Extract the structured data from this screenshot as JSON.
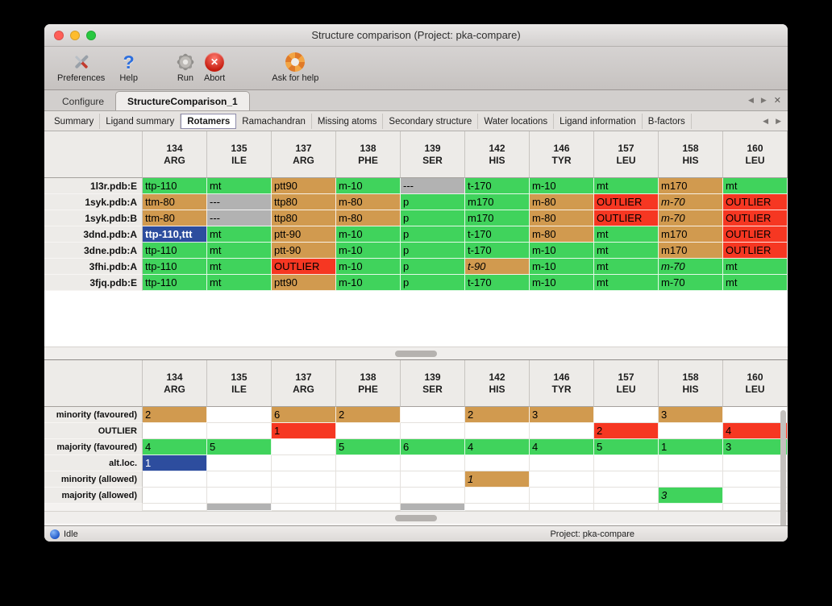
{
  "window": {
    "title": "Structure comparison (Project: pka-compare)"
  },
  "toolbar": {
    "items": [
      {
        "label": "Preferences"
      },
      {
        "label": "Help"
      },
      {
        "label": "Run"
      },
      {
        "label": "Abort"
      },
      {
        "label": "Ask for help"
      }
    ]
  },
  "icons": {
    "left_arrow": "◀",
    "right_arrow": "▶",
    "close": "✕",
    "question_mark": "?",
    "cross": "✕"
  },
  "tabs": [
    {
      "label": "Configure",
      "active": false
    },
    {
      "label": "StructureComparison_1",
      "active": true
    }
  ],
  "subtabs": {
    "active_index": 2,
    "items": [
      "Summary",
      "Ligand summary",
      "Rotamers",
      "Ramachandran",
      "Missing atoms",
      "Secondary structure",
      "Water locations",
      "Ligand information",
      "B-factors"
    ]
  },
  "columns": [
    {
      "num": "134",
      "res": "ARG"
    },
    {
      "num": "135",
      "res": "ILE"
    },
    {
      "num": "137",
      "res": "ARG"
    },
    {
      "num": "138",
      "res": "PHE"
    },
    {
      "num": "139",
      "res": "SER"
    },
    {
      "num": "142",
      "res": "HIS"
    },
    {
      "num": "146",
      "res": "TYR"
    },
    {
      "num": "157",
      "res": "LEU"
    },
    {
      "num": "158",
      "res": "HIS"
    },
    {
      "num": "160",
      "res": "LEU"
    }
  ],
  "colors": {
    "green": "#40d35c",
    "orange": "#d19a4f",
    "red": "#f63722",
    "gray": "#b2b2b2",
    "blue": "#2d4d9e"
  },
  "rotamer_table": {
    "rows": [
      {
        "label": "1l3r.pdb:E",
        "cells": [
          {
            "t": "ttp-110",
            "c": "green"
          },
          {
            "t": "mt",
            "c": "green"
          },
          {
            "t": "ptt90",
            "c": "orange"
          },
          {
            "t": "m-10",
            "c": "green"
          },
          {
            "t": "---",
            "c": "gray"
          },
          {
            "t": "t-170",
            "c": "green"
          },
          {
            "t": "m-10",
            "c": "green"
          },
          {
            "t": "mt",
            "c": "green"
          },
          {
            "t": "m170",
            "c": "orange"
          },
          {
            "t": "mt",
            "c": "green"
          }
        ]
      },
      {
        "label": "1syk.pdb:A",
        "cells": [
          {
            "t": "ttm-80",
            "c": "orange"
          },
          {
            "t": "---",
            "c": "gray"
          },
          {
            "t": "ttp80",
            "c": "orange"
          },
          {
            "t": "m-80",
            "c": "orange"
          },
          {
            "t": "p",
            "c": "green"
          },
          {
            "t": "m170",
            "c": "green"
          },
          {
            "t": "m-80",
            "c": "orange"
          },
          {
            "t": "OUTLIER",
            "c": "red"
          },
          {
            "t": "m-70",
            "c": "orange",
            "i": true
          },
          {
            "t": "OUTLIER",
            "c": "red"
          }
        ]
      },
      {
        "label": "1syk.pdb:B",
        "cells": [
          {
            "t": "ttm-80",
            "c": "orange"
          },
          {
            "t": "---",
            "c": "gray"
          },
          {
            "t": "ttp80",
            "c": "orange"
          },
          {
            "t": "m-80",
            "c": "orange"
          },
          {
            "t": "p",
            "c": "green"
          },
          {
            "t": "m170",
            "c": "green"
          },
          {
            "t": "m-80",
            "c": "orange"
          },
          {
            "t": "OUTLIER",
            "c": "red"
          },
          {
            "t": "m-70",
            "c": "orange",
            "i": true
          },
          {
            "t": "OUTLIER",
            "c": "red"
          }
        ]
      },
      {
        "label": "3dnd.pdb:A",
        "cells": [
          {
            "t": "ttp-110,ttt",
            "c": "blue",
            "b": true
          },
          {
            "t": "mt",
            "c": "green"
          },
          {
            "t": "ptt-90",
            "c": "orange"
          },
          {
            "t": "m-10",
            "c": "green"
          },
          {
            "t": "p",
            "c": "green"
          },
          {
            "t": "t-170",
            "c": "green"
          },
          {
            "t": "m-80",
            "c": "orange"
          },
          {
            "t": "mt",
            "c": "green"
          },
          {
            "t": "m170",
            "c": "orange"
          },
          {
            "t": "OUTLIER",
            "c": "red"
          }
        ]
      },
      {
        "label": "3dne.pdb:A",
        "cells": [
          {
            "t": "ttp-110",
            "c": "green"
          },
          {
            "t": "mt",
            "c": "green"
          },
          {
            "t": "ptt-90",
            "c": "orange"
          },
          {
            "t": "m-10",
            "c": "green"
          },
          {
            "t": "p",
            "c": "green"
          },
          {
            "t": "t-170",
            "c": "green"
          },
          {
            "t": "m-10",
            "c": "green"
          },
          {
            "t": "mt",
            "c": "green"
          },
          {
            "t": "m170",
            "c": "orange"
          },
          {
            "t": "OUTLIER",
            "c": "red"
          }
        ]
      },
      {
        "label": "3fhi.pdb:A",
        "cells": [
          {
            "t": "ttp-110",
            "c": "green"
          },
          {
            "t": "mt",
            "c": "green"
          },
          {
            "t": "OUTLIER",
            "c": "red"
          },
          {
            "t": "m-10",
            "c": "green"
          },
          {
            "t": "p",
            "c": "green"
          },
          {
            "t": "t-90",
            "c": "orange",
            "i": true
          },
          {
            "t": "m-10",
            "c": "green"
          },
          {
            "t": "mt",
            "c": "green"
          },
          {
            "t": "m-70",
            "c": "green",
            "i": true
          },
          {
            "t": "mt",
            "c": "green"
          }
        ]
      },
      {
        "label": "3fjq.pdb:E",
        "cells": [
          {
            "t": "ttp-110",
            "c": "green"
          },
          {
            "t": "mt",
            "c": "green"
          },
          {
            "t": "ptt90",
            "c": "orange"
          },
          {
            "t": "m-10",
            "c": "green"
          },
          {
            "t": "p",
            "c": "green"
          },
          {
            "t": "t-170",
            "c": "green"
          },
          {
            "t": "m-10",
            "c": "green"
          },
          {
            "t": "mt",
            "c": "green"
          },
          {
            "t": "m-70",
            "c": "green"
          },
          {
            "t": "mt",
            "c": "green"
          }
        ]
      }
    ]
  },
  "summary_table": {
    "rows": [
      {
        "label": "minority (favoured)",
        "cells": [
          {
            "t": "2",
            "c": "orange"
          },
          {},
          {
            "t": "6",
            "c": "orange"
          },
          {
            "t": "2",
            "c": "orange"
          },
          {},
          {
            "t": "2",
            "c": "orange"
          },
          {
            "t": "3",
            "c": "orange"
          },
          {},
          {
            "t": "3",
            "c": "orange"
          },
          {}
        ]
      },
      {
        "label": "OUTLIER",
        "cells": [
          {},
          {},
          {
            "t": "1",
            "c": "red"
          },
          {},
          {},
          {},
          {},
          {
            "t": "2",
            "c": "red"
          },
          {},
          {
            "t": "4",
            "c": "red"
          }
        ]
      },
      {
        "label": "majority (favoured)",
        "cells": [
          {
            "t": "4",
            "c": "green"
          },
          {
            "t": "5",
            "c": "green"
          },
          {},
          {
            "t": "5",
            "c": "green"
          },
          {
            "t": "6",
            "c": "green"
          },
          {
            "t": "4",
            "c": "green"
          },
          {
            "t": "4",
            "c": "green"
          },
          {
            "t": "5",
            "c": "green"
          },
          {
            "t": "1",
            "c": "green"
          },
          {
            "t": "3",
            "c": "green"
          }
        ]
      },
      {
        "label": "alt.loc.",
        "cells": [
          {
            "t": "1",
            "c": "blue"
          },
          {},
          {},
          {},
          {},
          {},
          {},
          {},
          {},
          {}
        ]
      },
      {
        "label": "minority (allowed)",
        "cells": [
          {},
          {},
          {},
          {},
          {},
          {
            "t": "1",
            "c": "orange",
            "i": true
          },
          {},
          {},
          {},
          {}
        ]
      },
      {
        "label": "majority (allowed)",
        "cells": [
          {},
          {},
          {},
          {},
          {},
          {},
          {},
          {},
          {
            "t": "3",
            "c": "green",
            "i": true
          },
          {}
        ]
      }
    ],
    "partial_row": {
      "gray_columns": [
        1,
        4
      ]
    }
  },
  "statusbar": {
    "state": "Idle",
    "project": "Project: pka-compare"
  }
}
